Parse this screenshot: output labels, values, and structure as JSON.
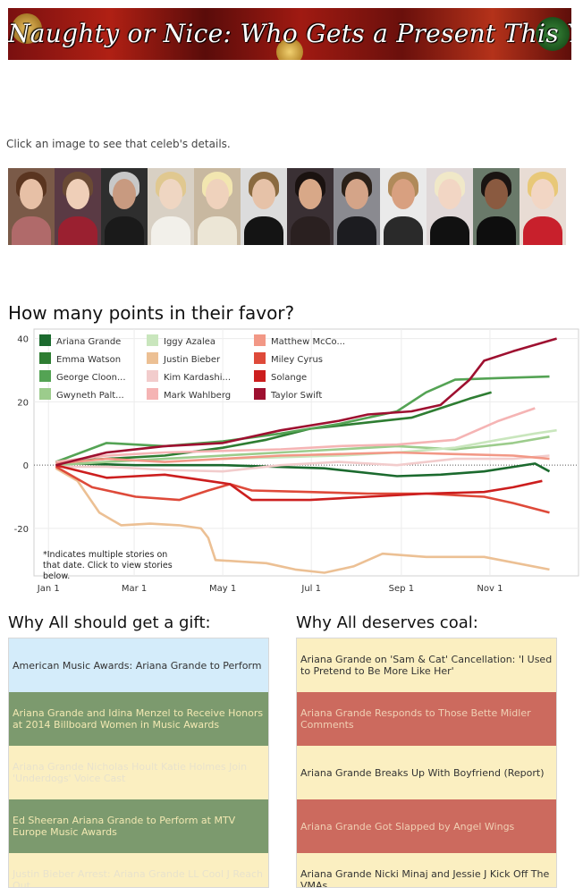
{
  "banner": {
    "title": "Naughty or Nice: Who Gets a Present This Year"
  },
  "instruction": "Click an image to see that celeb's details.",
  "celebs": [
    {
      "name": "Ariana Grande",
      "bg": "#7a5a48",
      "hair": "#5a3520",
      "face": "#e7c0a6",
      "top": "#b06a6a"
    },
    {
      "name": "Emma Watson",
      "bg": "#5a3a44",
      "hair": "#6a4a34",
      "face": "#efcfb8",
      "top": "#9a2030"
    },
    {
      "name": "George Clooney",
      "bg": "#2e2e2e",
      "hair": "#c8c8c8",
      "face": "#c89a80",
      "top": "#1a1a1a"
    },
    {
      "name": "Gwyneth Paltrow",
      "bg": "#d8d0c4",
      "hair": "#e0c890",
      "face": "#efd6c2",
      "top": "#f2f0ea"
    },
    {
      "name": "Iggy Azalea",
      "bg": "#c8b8a0",
      "hair": "#f2e6b0",
      "face": "#efd2bc",
      "top": "#ece6d6"
    },
    {
      "name": "Justin Bieber",
      "bg": "#dcdcdc",
      "hair": "#8a6a40",
      "face": "#e6c2a8",
      "top": "#141414"
    },
    {
      "name": "Kim Kardashian",
      "bg": "#3a3034",
      "hair": "#1a1210",
      "face": "#d8a888",
      "top": "#2a2020"
    },
    {
      "name": "Mark Wahlberg",
      "bg": "#8a8a90",
      "hair": "#2a2018",
      "face": "#d4a488",
      "top": "#1c1c20"
    },
    {
      "name": "Matthew McConaughey",
      "bg": "#eaeaea",
      "hair": "#b08a5a",
      "face": "#d8a080",
      "top": "#2a2a2a"
    },
    {
      "name": "Miley Cyrus",
      "bg": "#e0d8d8",
      "hair": "#f0e8c8",
      "face": "#f2d6c4",
      "top": "#111111"
    },
    {
      "name": "Solange",
      "bg": "#6a7a6a",
      "hair": "#1a1412",
      "face": "#8a5a40",
      "top": "#0e0e0e"
    },
    {
      "name": "Taylor Swift",
      "bg": "#e8dcd4",
      "hair": "#e8c878",
      "face": "#f2d6c4",
      "top": "#c8202c"
    }
  ],
  "chart_title": "How many points in their favor?",
  "chart_data": {
    "type": "line",
    "xlabel": "",
    "ylabel": "",
    "x_ticks": [
      "Jan 1",
      "Mar 1",
      "May 1",
      "Jul 1",
      "Sep 1",
      "Nov 1"
    ],
    "x_tick_days": [
      0,
      59,
      120,
      181,
      243,
      304
    ],
    "xlim": [
      -10,
      365
    ],
    "ylim": [
      -35,
      43
    ],
    "y_ticks": [
      -20,
      0,
      20,
      40
    ],
    "grid": true,
    "legend_position": "top-left",
    "note": "*Indicates multiple stories on that date. Click to view stories below.",
    "series": [
      {
        "name": "Ariana Grande",
        "color": "#1b6a2e",
        "points": [
          [
            5,
            1
          ],
          [
            20,
            0.5
          ],
          [
            60,
            0
          ],
          [
            120,
            0
          ],
          [
            190,
            -1
          ],
          [
            240,
            -3.5
          ],
          [
            270,
            -3
          ],
          [
            300,
            -2
          ],
          [
            335,
            0.5
          ],
          [
            345,
            -2
          ]
        ]
      },
      {
        "name": "Emma Watson",
        "color": "#2e7d32",
        "points": [
          [
            5,
            1
          ],
          [
            40,
            2
          ],
          [
            80,
            3
          ],
          [
            120,
            5.5
          ],
          [
            150,
            8
          ],
          [
            180,
            11.5
          ],
          [
            210,
            13
          ],
          [
            250,
            15
          ],
          [
            270,
            18
          ],
          [
            290,
            21
          ],
          [
            305,
            23
          ]
        ]
      },
      {
        "name": "George Clooney",
        "color": "#54a354",
        "points": [
          [
            5,
            1
          ],
          [
            40,
            7
          ],
          [
            80,
            6
          ],
          [
            120,
            7.5
          ],
          [
            160,
            10
          ],
          [
            200,
            13
          ],
          [
            240,
            17
          ],
          [
            260,
            23
          ],
          [
            280,
            27
          ],
          [
            310,
            27.5
          ],
          [
            345,
            28
          ]
        ]
      },
      {
        "name": "Gwyneth Paltrow",
        "color": "#9ccc8c",
        "points": [
          [
            5,
            0
          ],
          [
            40,
            1
          ],
          [
            80,
            2
          ],
          [
            120,
            3
          ],
          [
            160,
            4
          ],
          [
            200,
            5
          ],
          [
            240,
            6
          ],
          [
            280,
            5
          ],
          [
            320,
            7
          ],
          [
            345,
            9
          ]
        ]
      },
      {
        "name": "Iggy Azalea",
        "color": "#c9e6bd",
        "points": [
          [
            120,
            2
          ],
          [
            160,
            2.5
          ],
          [
            200,
            3
          ],
          [
            240,
            4
          ],
          [
            280,
            5.5
          ],
          [
            310,
            8
          ],
          [
            335,
            10
          ],
          [
            350,
            11
          ]
        ]
      },
      {
        "name": "Justin Bieber",
        "color": "#ecc094",
        "points": [
          [
            5,
            -1
          ],
          [
            20,
            -5
          ],
          [
            35,
            -15
          ],
          [
            50,
            -19
          ],
          [
            70,
            -18.5
          ],
          [
            90,
            -19
          ],
          [
            105,
            -20
          ],
          [
            110,
            -23
          ],
          [
            115,
            -30
          ],
          [
            150,
            -31
          ],
          [
            170,
            -33
          ],
          [
            190,
            -34
          ],
          [
            210,
            -32
          ],
          [
            230,
            -28
          ],
          [
            260,
            -29
          ],
          [
            300,
            -29
          ],
          [
            345,
            -33
          ]
        ]
      },
      {
        "name": "Kim Kardashian",
        "color": "#f2cccc",
        "points": [
          [
            5,
            -0.5
          ],
          [
            40,
            -0.5
          ],
          [
            80,
            -1.5
          ],
          [
            120,
            -2
          ],
          [
            160,
            0
          ],
          [
            200,
            1
          ],
          [
            240,
            0
          ],
          [
            280,
            2
          ],
          [
            320,
            2
          ],
          [
            345,
            3
          ]
        ]
      },
      {
        "name": "Mark Wahlberg",
        "color": "#f5b4b4",
        "points": [
          [
            5,
            1
          ],
          [
            40,
            3
          ],
          [
            80,
            4
          ],
          [
            120,
            4.5
          ],
          [
            160,
            5
          ],
          [
            200,
            6
          ],
          [
            240,
            6.5
          ],
          [
            280,
            8
          ],
          [
            310,
            14
          ],
          [
            335,
            18
          ]
        ]
      },
      {
        "name": "Matthew McConaughey",
        "color": "#f29886",
        "points": [
          [
            5,
            0.5
          ],
          [
            40,
            2
          ],
          [
            80,
            1
          ],
          [
            120,
            2
          ],
          [
            160,
            3
          ],
          [
            200,
            3.5
          ],
          [
            240,
            4
          ],
          [
            280,
            3.5
          ],
          [
            320,
            3
          ],
          [
            345,
            2
          ]
        ]
      },
      {
        "name": "Miley Cyrus",
        "color": "#de4a3a",
        "points": [
          [
            5,
            -0.5
          ],
          [
            30,
            -7
          ],
          [
            60,
            -10
          ],
          [
            90,
            -11
          ],
          [
            110,
            -8
          ],
          [
            125,
            -6
          ],
          [
            140,
            -8
          ],
          [
            180,
            -8.5
          ],
          [
            220,
            -9
          ],
          [
            260,
            -9
          ],
          [
            300,
            -10
          ],
          [
            320,
            -12
          ],
          [
            345,
            -15
          ]
        ]
      },
      {
        "name": "Solange",
        "color": "#cc1e1e",
        "points": [
          [
            5,
            0
          ],
          [
            40,
            -4
          ],
          [
            80,
            -3
          ],
          [
            110,
            -5
          ],
          [
            125,
            -6
          ],
          [
            140,
            -11
          ],
          [
            180,
            -11
          ],
          [
            220,
            -10
          ],
          [
            260,
            -9
          ],
          [
            300,
            -8.5
          ],
          [
            320,
            -7
          ],
          [
            340,
            -5
          ]
        ]
      },
      {
        "name": "Taylor Swift",
        "color": "#9e1030",
        "points": [
          [
            5,
            0
          ],
          [
            40,
            4
          ],
          [
            80,
            6
          ],
          [
            120,
            7
          ],
          [
            160,
            11
          ],
          [
            200,
            14
          ],
          [
            220,
            16
          ],
          [
            250,
            17
          ],
          [
            270,
            19
          ],
          [
            290,
            27
          ],
          [
            300,
            33
          ],
          [
            320,
            36
          ],
          [
            350,
            40
          ]
        ]
      }
    ]
  },
  "gift": {
    "title": "Why All should get a gift:",
    "stories": [
      {
        "text": "American Music Awards: Ariana Grande to Perform",
        "bg": "#d4ecfa",
        "color": "#333333"
      },
      {
        "text": "Ariana Grande and Idina Menzel to Receive Honors at 2014 Billboard Women in Music Awards",
        "bg": "#7c9a6e",
        "color": "#f2e8b2"
      },
      {
        "text": "Ariana Grande Nicholas Hoult Katie Holmes Join 'Underdogs' Voice Cast",
        "bg": "#fbefc1",
        "color": "#e8e2cc"
      },
      {
        "text": "Ed Sheeran Ariana Grande to Perform at MTV Europe Music Awards",
        "bg": "#7c9a6e",
        "color": "#f2e8b2"
      },
      {
        "text": "Justin Bieber Arrest: Ariana Grande LL Cool J Reach Out",
        "bg": "#fbefc1",
        "color": "#e8e2cc"
      }
    ]
  },
  "coal": {
    "title": "Why All deserves coal:",
    "stories": [
      {
        "text": "Ariana Grande on 'Sam & Cat' Cancellation: 'I Used to Pretend to Be More Like Her'",
        "bg": "#fbefc1",
        "color": "#333333"
      },
      {
        "text": "Ariana Grande Responds to Those Bette Midler Comments",
        "bg": "#cc6a5e",
        "color": "#f0d0b4"
      },
      {
        "text": "Ariana Grande Breaks Up With Boyfriend (Report)",
        "bg": "#fbefc1",
        "color": "#333333"
      },
      {
        "text": "Ariana Grande Got Slapped by Angel Wings",
        "bg": "#cc6a5e",
        "color": "#f0d0b4"
      },
      {
        "text": "Ariana Grande Nicki Minaj and Jessie J Kick Off The VMAs",
        "bg": "#fbefc1",
        "color": "#333333"
      }
    ]
  }
}
